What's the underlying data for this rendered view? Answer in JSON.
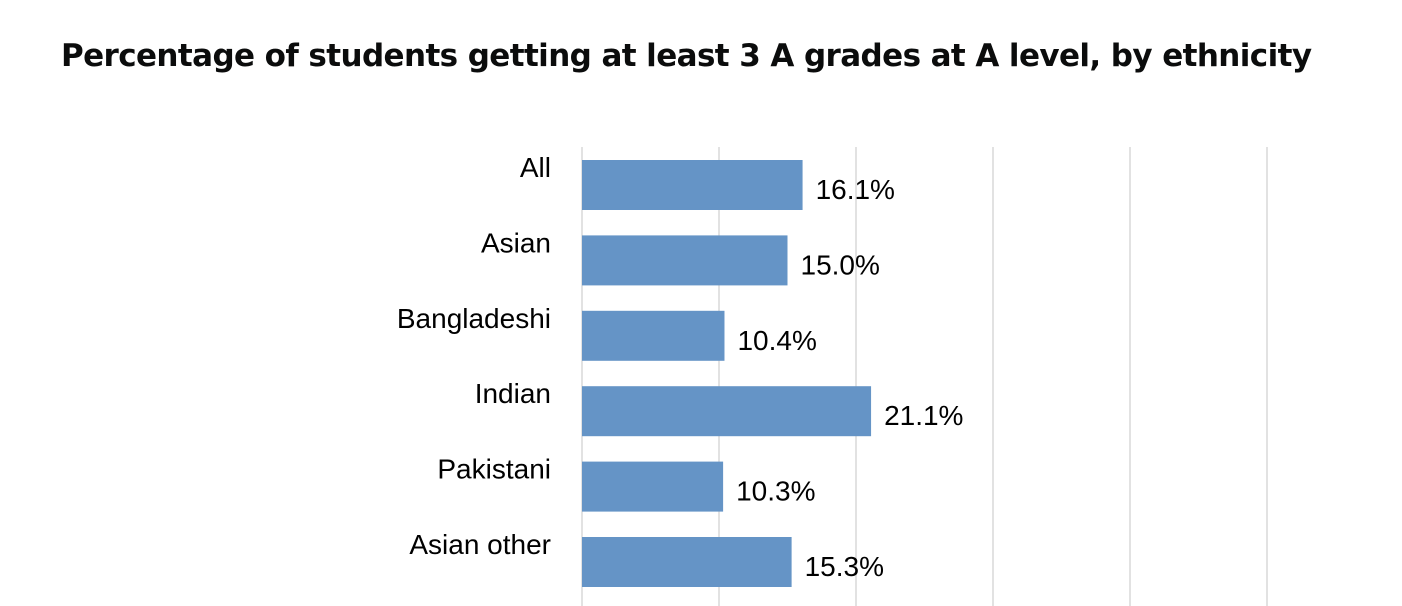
{
  "chart_data": {
    "type": "bar",
    "orientation": "horizontal",
    "title": "Percentage of students getting at least 3 A grades at A level, by ethnicity",
    "categories": [
      "All",
      "Asian",
      "Bangladeshi",
      "Indian",
      "Pakistani",
      "Asian other"
    ],
    "values": [
      16.1,
      15.0,
      10.4,
      21.1,
      10.3,
      15.3
    ],
    "value_labels": [
      "16.1%",
      "15.0%",
      "10.4%",
      "21.1%",
      "10.3%",
      "15.3%"
    ],
    "xlim": [
      0,
      50
    ],
    "grid": true,
    "bar_color": "#6594c6",
    "grid_color": "#d9d9d9"
  }
}
